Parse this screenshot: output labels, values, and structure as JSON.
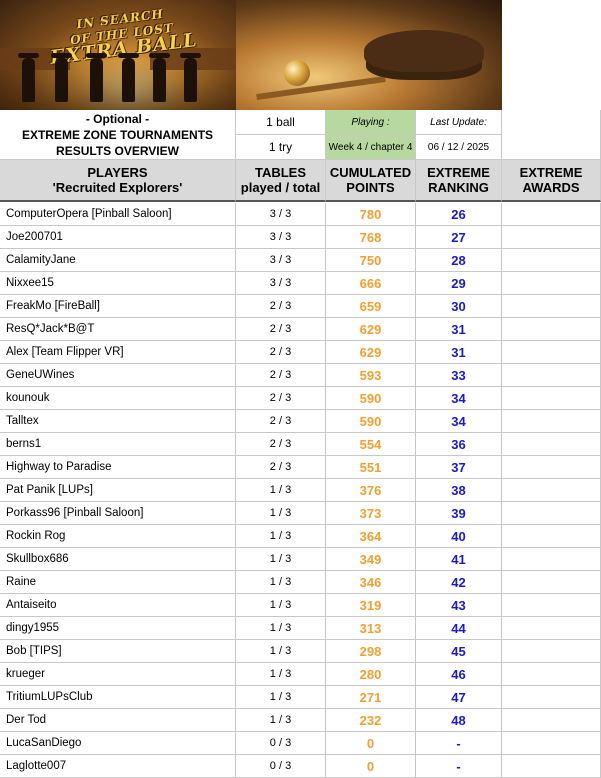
{
  "banner": {
    "title_line1": "IN SEARCH",
    "title_line2": "OF THE LOST",
    "title_line3": "EXTRA BALL"
  },
  "header": {
    "optional": "- Optional -",
    "line2": "EXTREME ZONE TOURNAMENTS",
    "line3": "RESULTS OVERVIEW",
    "balls": "1 ball",
    "tries": "1 try",
    "playing_label": "Playing :",
    "playing_value": "Week 4 / chapter 4",
    "update_label": "Last Update:",
    "update_value": "06 / 12 / 2025"
  },
  "columns": {
    "players_line1": "PLAYERS",
    "players_line2": "'Recruited Explorers'",
    "tables_line1": "TABLES",
    "tables_line2": "played / total",
    "points_line1": "CUMULATED",
    "points_line2": "POINTS",
    "rank_line1": "EXTREME",
    "rank_line2": "RANKING",
    "awards_line1": "EXTREME",
    "awards_line2": "AWARDS"
  },
  "colors": {
    "points": "#f0a030",
    "ranking": "#1a1acc",
    "playing_bg": "#b7d9a0",
    "header_bg": "#d9d9d9"
  },
  "rows": [
    {
      "player": "ComputerOpera [Pinball Saloon]",
      "tables": "3 / 3",
      "points": "780",
      "rank": "26"
    },
    {
      "player": "Joe200701",
      "tables": "3 / 3",
      "points": "768",
      "rank": "27"
    },
    {
      "player": "CalamityJane",
      "tables": "3 / 3",
      "points": "750",
      "rank": "28"
    },
    {
      "player": "Nixxee15",
      "tables": "3 / 3",
      "points": "666",
      "rank": "29"
    },
    {
      "player": "FreakMo [FireBall]",
      "tables": "2 / 3",
      "points": "659",
      "rank": "30"
    },
    {
      "player": "ResQ*Jack*B@T",
      "tables": "2 / 3",
      "points": "629",
      "rank": "31"
    },
    {
      "player": "Alex [Team Flipper VR]",
      "tables": "2 / 3",
      "points": "629",
      "rank": "31"
    },
    {
      "player": "GeneUWines",
      "tables": "2 / 3",
      "points": "593",
      "rank": "33"
    },
    {
      "player": "kounouk",
      "tables": "2 / 3",
      "points": "590",
      "rank": "34"
    },
    {
      "player": "Talltex",
      "tables": "2 / 3",
      "points": "590",
      "rank": "34"
    },
    {
      "player": "berns1",
      "tables": "2 / 3",
      "points": "554",
      "rank": "36"
    },
    {
      "player": "Highway to Paradise",
      "tables": "2 / 3",
      "points": "551",
      "rank": "37"
    },
    {
      "player": "Pat Panik [LUPs]",
      "tables": "1 / 3",
      "points": "376",
      "rank": "38"
    },
    {
      "player": "Porkass96 [Pinball Saloon]",
      "tables": "1 / 3",
      "points": "373",
      "rank": "39"
    },
    {
      "player": "Rockin Rog",
      "tables": "1 / 3",
      "points": "364",
      "rank": "40"
    },
    {
      "player": "Skullbox686",
      "tables": "1 / 3",
      "points": "349",
      "rank": "41"
    },
    {
      "player": "Raine",
      "tables": "1 / 3",
      "points": "346",
      "rank": "42"
    },
    {
      "player": "Antaiseito",
      "tables": "1 / 3",
      "points": "319",
      "rank": "43"
    },
    {
      "player": "dingy1955",
      "tables": "1 / 3",
      "points": "313",
      "rank": "44"
    },
    {
      "player": "Bob [TIPS]",
      "tables": "1 / 3",
      "points": "298",
      "rank": "45"
    },
    {
      "player": "krueger",
      "tables": "1 / 3",
      "points": "280",
      "rank": "46"
    },
    {
      "player": "TritiumLUPsClub",
      "tables": "1 / 3",
      "points": "271",
      "rank": "47"
    },
    {
      "player": "Der Tod",
      "tables": "1 / 3",
      "points": "232",
      "rank": "48"
    },
    {
      "player": "LucaSanDiego",
      "tables": "0 / 3",
      "points": "0",
      "rank": "-"
    },
    {
      "player": "Laglotte007",
      "tables": "0 / 3",
      "points": "0",
      "rank": "-"
    }
  ]
}
